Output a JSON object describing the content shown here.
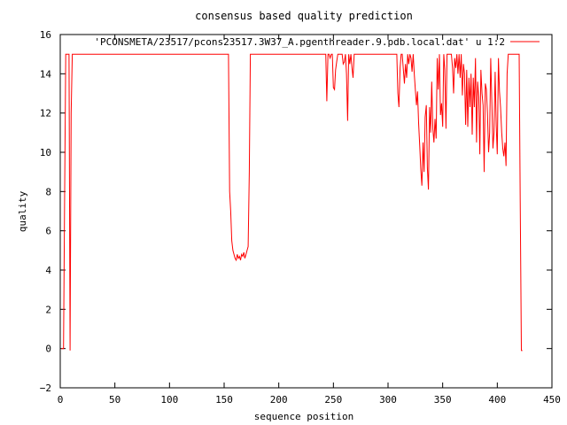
{
  "chart_data": {
    "type": "line",
    "title": "consensus based quality prediction",
    "xlabel": "sequence position",
    "ylabel": "quality",
    "xlim": [
      0,
      450
    ],
    "ylim": [
      -2,
      16
    ],
    "xticks": [
      0,
      50,
      100,
      150,
      200,
      250,
      300,
      350,
      400,
      450
    ],
    "yticks": [
      -2,
      0,
      2,
      4,
      6,
      8,
      10,
      12,
      14,
      16
    ],
    "legend_position": "top-right",
    "grid": false,
    "series_color": "#ff0000",
    "series": [
      {
        "name": "'PCONSMETA/23517/pcons23517.3W37_A.pgenthreader.9.pdb.local.dat' u 1:2",
        "points": [
          [
            1,
            0
          ],
          [
            2,
            0
          ],
          [
            3,
            0
          ],
          [
            4,
            7.5
          ],
          [
            5,
            15
          ],
          [
            6,
            15
          ],
          [
            7,
            15
          ],
          [
            8,
            15
          ],
          [
            9,
            -0.1
          ],
          [
            10,
            12
          ],
          [
            11,
            15
          ],
          [
            50,
            15
          ],
          [
            100,
            15
          ],
          [
            154,
            15
          ],
          [
            155,
            8
          ],
          [
            156,
            7
          ],
          [
            157,
            5.5
          ],
          [
            158,
            5
          ],
          [
            159,
            4.8
          ],
          [
            160,
            4.6
          ],
          [
            161,
            4.5
          ],
          [
            162,
            4.8
          ],
          [
            163,
            4.6
          ],
          [
            164,
            4.7
          ],
          [
            165,
            4.5
          ],
          [
            166,
            4.8
          ],
          [
            167,
            4.7
          ],
          [
            168,
            4.9
          ],
          [
            169,
            4.6
          ],
          [
            170,
            4.8
          ],
          [
            171,
            5.0
          ],
          [
            172,
            5.2
          ],
          [
            173,
            9
          ],
          [
            174,
            15
          ],
          [
            200,
            15
          ],
          [
            243,
            15
          ],
          [
            244,
            12.6
          ],
          [
            245,
            15
          ],
          [
            246,
            15
          ],
          [
            247,
            14.8
          ],
          [
            248,
            15
          ],
          [
            249,
            15
          ],
          [
            250,
            13.3
          ],
          [
            251,
            13.2
          ],
          [
            252,
            14.2
          ],
          [
            253,
            14.6
          ],
          [
            254,
            15
          ],
          [
            258,
            15
          ],
          [
            259,
            14.5
          ],
          [
            260,
            14.6
          ],
          [
            261,
            15
          ],
          [
            262,
            14
          ],
          [
            263,
            11.6
          ],
          [
            264,
            15
          ],
          [
            265,
            14.5
          ],
          [
            266,
            15
          ],
          [
            267,
            14.3
          ],
          [
            268,
            13.8
          ],
          [
            269,
            15
          ],
          [
            272,
            15
          ],
          [
            300,
            15
          ],
          [
            308,
            15
          ],
          [
            309,
            13
          ],
          [
            310,
            12.3
          ],
          [
            311,
            14.3
          ],
          [
            312,
            15
          ],
          [
            313,
            15
          ],
          [
            314,
            14.2
          ],
          [
            315,
            13.5
          ],
          [
            316,
            14.5
          ],
          [
            317,
            13.8
          ],
          [
            318,
            15
          ],
          [
            319,
            14.5
          ],
          [
            320,
            15
          ],
          [
            321,
            14.8
          ],
          [
            322,
            14.1
          ],
          [
            323,
            15
          ],
          [
            324,
            14
          ],
          [
            325,
            13.2
          ],
          [
            326,
            12.4
          ],
          [
            327,
            13.1
          ],
          [
            328,
            11.5
          ],
          [
            329,
            10.3
          ],
          [
            330,
            9.1
          ],
          [
            331,
            8.3
          ],
          [
            332,
            10.5
          ],
          [
            333,
            9
          ],
          [
            334,
            11.8
          ],
          [
            335,
            12.4
          ],
          [
            336,
            9.2
          ],
          [
            337,
            8.1
          ],
          [
            338,
            12.3
          ],
          [
            339,
            11
          ],
          [
            340,
            13.6
          ],
          [
            341,
            11.2
          ],
          [
            342,
            10.5
          ],
          [
            343,
            11.7
          ],
          [
            344,
            10.7
          ],
          [
            345,
            14.8
          ],
          [
            346,
            13.2
          ],
          [
            347,
            15
          ],
          [
            348,
            11.9
          ],
          [
            349,
            12.5
          ],
          [
            350,
            11.3
          ],
          [
            351,
            15
          ],
          [
            352,
            14.2
          ],
          [
            353,
            11.2
          ],
          [
            354,
            15
          ],
          [
            355,
            15
          ],
          [
            358,
            15
          ],
          [
            359,
            14.3
          ],
          [
            360,
            13
          ],
          [
            361,
            14.8
          ],
          [
            362,
            14.3
          ],
          [
            363,
            15
          ],
          [
            364,
            14
          ],
          [
            365,
            15
          ],
          [
            366,
            13.8
          ],
          [
            367,
            15
          ],
          [
            368,
            12.9
          ],
          [
            369,
            14.5
          ],
          [
            370,
            14
          ],
          [
            371,
            11.4
          ],
          [
            372,
            14.2
          ],
          [
            373,
            11.3
          ],
          [
            374,
            13.8
          ],
          [
            375,
            12.3
          ],
          [
            376,
            14
          ],
          [
            377,
            10.9
          ],
          [
            378,
            13.8
          ],
          [
            379,
            12.3
          ],
          [
            380,
            14.8
          ],
          [
            381,
            10.5
          ],
          [
            382,
            13.6
          ],
          [
            383,
            12.8
          ],
          [
            384,
            9.9
          ],
          [
            385,
            14.2
          ],
          [
            386,
            13
          ],
          [
            387,
            12.4
          ],
          [
            388,
            9
          ],
          [
            389,
            13.5
          ],
          [
            390,
            13.2
          ],
          [
            391,
            12
          ],
          [
            392,
            10
          ],
          [
            393,
            11
          ],
          [
            394,
            14.8
          ],
          [
            395,
            12.5
          ],
          [
            396,
            10.2
          ],
          [
            397,
            11
          ],
          [
            398,
            14.1
          ],
          [
            399,
            11.4
          ],
          [
            400,
            9.9
          ],
          [
            401,
            14.8
          ],
          [
            402,
            13.1
          ],
          [
            403,
            12.3
          ],
          [
            404,
            11
          ],
          [
            405,
            10.2
          ],
          [
            406,
            9.8
          ],
          [
            407,
            10.5
          ],
          [
            408,
            9.3
          ],
          [
            409,
            14
          ],
          [
            410,
            15
          ],
          [
            411,
            15
          ],
          [
            412,
            15
          ],
          [
            420,
            15
          ],
          [
            421,
            7.5
          ],
          [
            422,
            -0.1
          ],
          [
            423,
            -0.1
          ]
        ]
      }
    ]
  }
}
